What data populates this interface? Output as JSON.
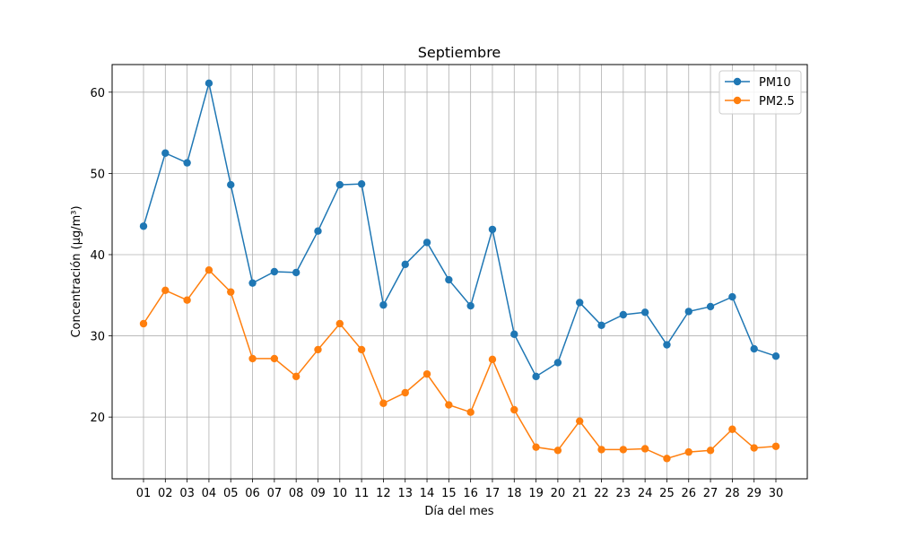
{
  "chart_data": {
    "type": "line",
    "title": "Septiembre",
    "xlabel": "Día del mes",
    "ylabel": "Concentración (µg/m³)",
    "categories": [
      "01",
      "02",
      "03",
      "04",
      "05",
      "06",
      "07",
      "08",
      "09",
      "10",
      "11",
      "12",
      "13",
      "14",
      "15",
      "16",
      "17",
      "18",
      "19",
      "20",
      "21",
      "22",
      "23",
      "24",
      "25",
      "26",
      "27",
      "28",
      "29",
      "30"
    ],
    "ylim": [
      12.4,
      63.4
    ],
    "yticks": [
      20,
      30,
      40,
      50,
      60
    ],
    "grid": true,
    "legend_position": "top-right",
    "series": [
      {
        "name": "PM10",
        "color": "#1f77b4",
        "values": [
          43.5,
          52.5,
          51.3,
          61.1,
          48.6,
          36.5,
          37.9,
          37.8,
          42.9,
          48.6,
          48.7,
          33.8,
          38.8,
          41.5,
          36.9,
          33.7,
          43.1,
          30.2,
          25.0,
          26.7,
          34.1,
          31.3,
          32.6,
          32.9,
          28.9,
          33.0,
          33.6,
          34.8,
          28.4,
          27.5
        ]
      },
      {
        "name": "PM2.5",
        "color": "#ff7f0e",
        "values": [
          31.5,
          35.6,
          34.4,
          38.1,
          35.4,
          27.2,
          27.2,
          25.0,
          28.3,
          31.5,
          28.3,
          21.7,
          23.0,
          25.3,
          21.5,
          20.6,
          27.1,
          20.9,
          16.3,
          15.9,
          19.5,
          16.0,
          16.0,
          16.1,
          14.9,
          15.7,
          15.9,
          18.5,
          16.2,
          16.4
        ]
      }
    ]
  }
}
